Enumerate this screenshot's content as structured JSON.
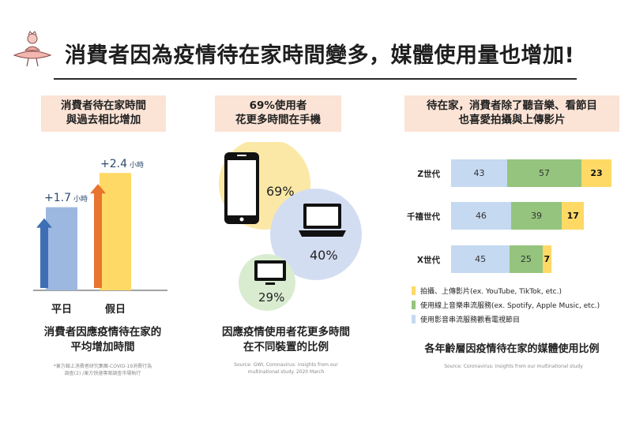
{
  "header": {
    "title": "消費者因為疫情待在家時間變多，媒體使用量也增加!"
  },
  "colors": {
    "accent_peach": "#fbe3d6",
    "blue": "#9db8e0",
    "green": "#94c47d",
    "yellow": "#ffd966",
    "orange_bar": "#ffd966",
    "arrow_blue": "#3e6fb5",
    "arrow_orange": "#e8742e"
  },
  "panel1": {
    "header_lines": [
      "消費者待在家時間",
      "與過去相比增加"
    ],
    "footer_lines": [
      "消費者因應疫情待在家的",
      "平均增加時間"
    ],
    "source_lines": [
      "*東方線上消費者研究集團-COVID-19消費行為",
      "調查(2) /東方快速專案調查市場執行"
    ]
  },
  "panel2": {
    "header_lines": [
      "69%使用者",
      "花更多時間在手機"
    ],
    "footer_lines": [
      "因應疫情使用者花更多時間",
      "在不同裝置的比例"
    ],
    "source_lines": [
      "Source: GWI, Coronavirus: insights from our",
      "multinational study. 2020 March"
    ]
  },
  "panel3": {
    "header_lines": [
      "待在家，消費者除了聽音樂、看節目",
      "也喜愛拍攝與上傳影片"
    ],
    "footer": "各年齡層因疫情待在家的媒體使用比例",
    "source": "Source: Coronavirus: insights from our multinational study"
  },
  "chart_data": [
    {
      "type": "bar",
      "categories": [
        "平日",
        "假日"
      ],
      "series": [
        {
          "values": [
            1.7,
            2.4
          ],
          "labels": [
            "+1.7",
            "+2.4"
          ],
          "unit": "小時"
        }
      ]
    },
    {
      "type": "bubble",
      "items": [
        {
          "device": "smartphone",
          "value": 69,
          "label": "69%",
          "color": "#fbe8a6"
        },
        {
          "device": "laptop",
          "value": 40,
          "label": "40%",
          "color": "#d3ddf2"
        },
        {
          "device": "tv",
          "value": 29,
          "label": "29%",
          "color": "#d9ecd0"
        }
      ]
    },
    {
      "type": "bar",
      "stacked": true,
      "orientation": "horizontal",
      "categories": [
        "Z世代",
        "千禧世代",
        "X世代"
      ],
      "series": [
        {
          "name": "使用影音串流服務觀看電視節目",
          "values": [
            43,
            46,
            45
          ],
          "color": "#c5d9f0"
        },
        {
          "name": "使用線上音樂串流服務(ex. Spotify, Apple Music, etc.)",
          "values": [
            57,
            39,
            25
          ],
          "color": "#94c47d"
        },
        {
          "name": "拍攝、上傳影片(ex. YouTube, TikTok, etc.)",
          "values": [
            23,
            17,
            7
          ],
          "color": "#ffd966"
        }
      ],
      "legend_order": [
        "拍攝、上傳影片(ex. YouTube, TikTok, etc.)",
        "使用線上音樂串流服務(ex. Spotify, Apple Music, etc.)",
        "使用影音串流服務觀看電視節目"
      ],
      "legend_colors": [
        "#ffd966",
        "#94c47d",
        "#c5d9f0"
      ]
    }
  ]
}
